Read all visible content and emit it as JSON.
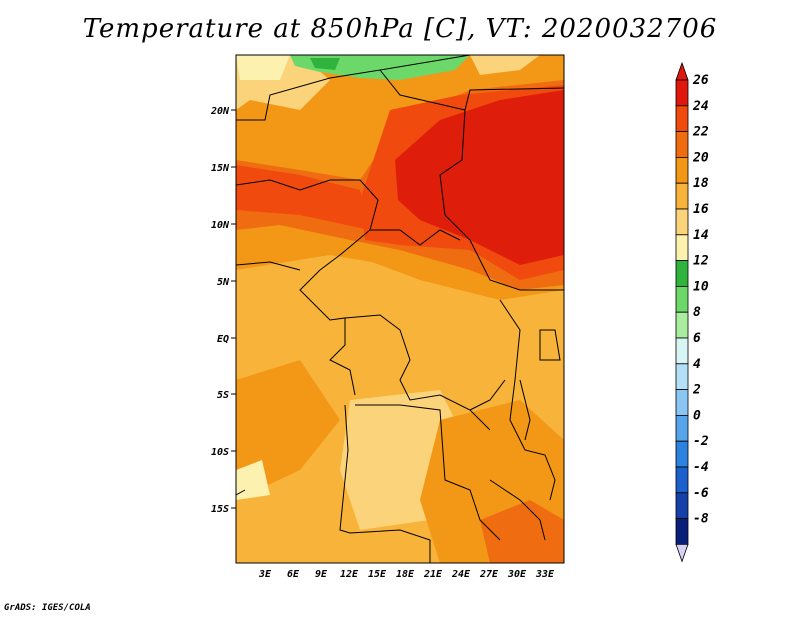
{
  "title": "Temperature at 850hPa [C], VT: 2020032706",
  "credit": "GrADS: IGES/COLA",
  "map": {
    "lat_labels": [
      "20N",
      "15N",
      "10N",
      "5N",
      "EQ",
      "5S",
      "10S",
      "15S"
    ],
    "lon_labels": [
      "3E",
      "6E",
      "9E",
      "12E",
      "15E",
      "18E",
      "21E",
      "24E",
      "27E",
      "30E",
      "33E"
    ]
  },
  "colorbar": {
    "labels": [
      "26",
      "24",
      "22",
      "20",
      "18",
      "16",
      "14",
      "12",
      "10",
      "8",
      "6",
      "4",
      "2",
      "0",
      "-2",
      "-4",
      "-6",
      "-8"
    ],
    "colors": [
      "#e0170c",
      "#f04a0e",
      "#f06c10",
      "#f39717",
      "#f8b33a",
      "#fbd37a",
      "#fdf1b0",
      "#2fb33c",
      "#6cd86a",
      "#a9ee9f",
      "#d7f5f5",
      "#b3e0f7",
      "#89c7f2",
      "#56a4ea",
      "#2e82df",
      "#1b60cc",
      "#1440a8",
      "#0a1f7a"
    ],
    "under_color": "#d9d0f5"
  },
  "regions": {
    "hot_core": "#de1e0a",
    "very_warm": "#f04a0e",
    "warm": "#f06c10",
    "mild": "#f39717",
    "cool_orange": "#f8b33a",
    "pale": "#fbd37a",
    "cream": "#fdf1b0",
    "green": "#6cd86a",
    "dark_green": "#2fb33c"
  }
}
